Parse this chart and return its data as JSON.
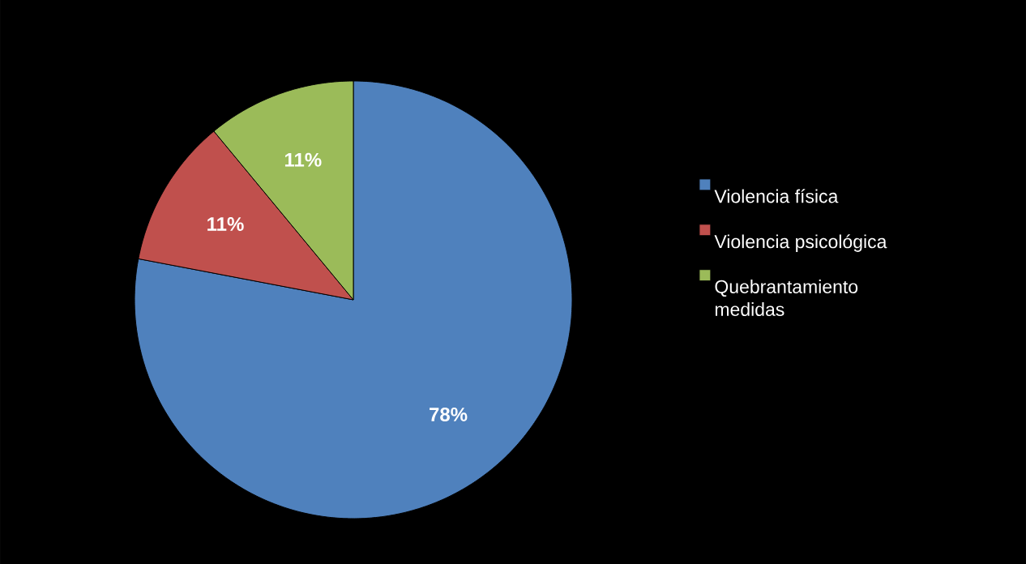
{
  "chart_data": {
    "type": "pie",
    "categories": [
      "Violencia física",
      "Violencia psicológica",
      "Quebrantamiento medidas"
    ],
    "values": [
      78,
      11,
      11
    ],
    "colors": [
      "#4f81bd",
      "#c0504d",
      "#9bbb59"
    ],
    "value_labels": [
      "78%",
      "11%",
      "11%"
    ],
    "legend": "right"
  }
}
